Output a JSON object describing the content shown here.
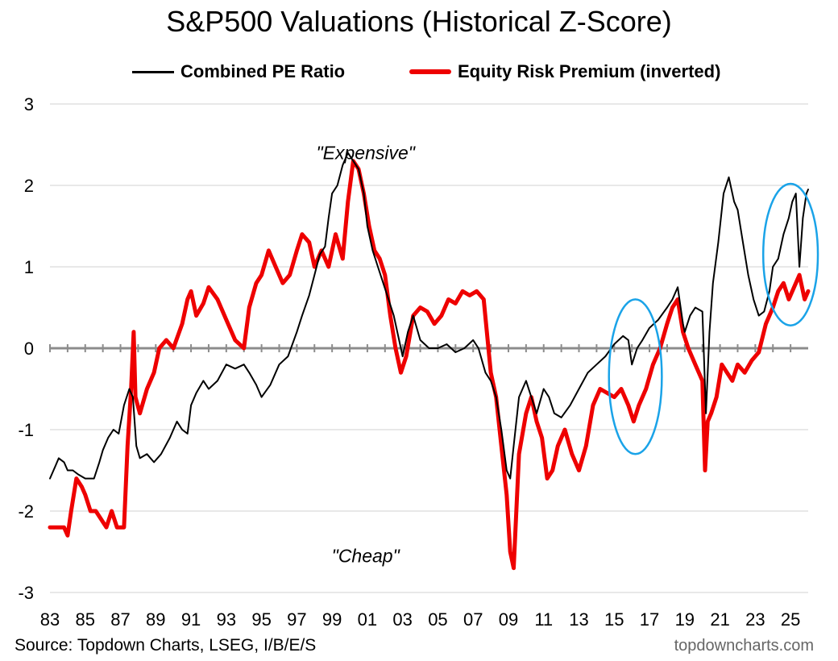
{
  "chart_data": {
    "type": "line",
    "title": "S&P500 Valuations (Historical Z-Score)",
    "xlabel": "",
    "ylabel": "",
    "ylim": [
      -3,
      3
    ],
    "xlim": [
      1983,
      2026
    ],
    "yticks": [
      3,
      2,
      1,
      0,
      -1,
      -2,
      -3
    ],
    "xtick_labels": [
      "83",
      "85",
      "87",
      "89",
      "91",
      "93",
      "95",
      "97",
      "99",
      "01",
      "03",
      "05",
      "07",
      "09",
      "11",
      "13",
      "15",
      "17",
      "19",
      "21",
      "23",
      "25"
    ],
    "grid": true,
    "legend_position": "top",
    "series": [
      {
        "name": "Combined PE Ratio",
        "color": "#000000",
        "x": [
          1983.0,
          1983.3,
          1983.5,
          1983.8,
          1984.0,
          1984.3,
          1984.6,
          1985.0,
          1985.5,
          1985.8,
          1986.0,
          1986.3,
          1986.6,
          1986.9,
          1987.2,
          1987.5,
          1987.7,
          1987.9,
          1988.1,
          1988.5,
          1988.9,
          1989.3,
          1989.8,
          1990.2,
          1990.5,
          1990.8,
          1991.0,
          1991.3,
          1991.7,
          1992.0,
          1992.5,
          1993.0,
          1993.5,
          1994.0,
          1994.3,
          1994.7,
          1995.0,
          1995.5,
          1996.0,
          1996.5,
          1997.0,
          1997.3,
          1997.7,
          1998.0,
          1998.3,
          1998.6,
          1998.8,
          1999.0,
          1999.3,
          1999.6,
          1999.9,
          2000.2,
          2000.5,
          2000.8,
          2001.0,
          2001.3,
          2001.6,
          2001.9,
          2002.2,
          2002.5,
          2002.8,
          2003.0,
          2003.3,
          2003.6,
          2004.0,
          2004.5,
          2005.0,
          2005.5,
          2006.0,
          2006.5,
          2007.0,
          2007.3,
          2007.7,
          2008.0,
          2008.3,
          2008.6,
          2008.9,
          2009.1,
          2009.3,
          2009.6,
          2010.0,
          2010.3,
          2010.6,
          2011.0,
          2011.3,
          2011.6,
          2012.0,
          2012.5,
          2013.0,
          2013.5,
          2014.0,
          2014.5,
          2015.0,
          2015.5,
          2015.8,
          2016.0,
          2016.3,
          2016.6,
          2017.0,
          2017.5,
          2018.0,
          2018.3,
          2018.6,
          2018.9,
          2019.0,
          2019.3,
          2019.6,
          2020.0,
          2020.2,
          2020.4,
          2020.6,
          2020.9,
          2021.2,
          2021.5,
          2021.8,
          2022.0,
          2022.3,
          2022.6,
          2022.9,
          2023.2,
          2023.5,
          2023.8,
          2024.0,
          2024.3,
          2024.6,
          2024.9,
          2025.1,
          2025.3,
          2025.5,
          2025.7,
          2025.9,
          2026.0
        ],
        "values": [
          -1.6,
          -1.45,
          -1.35,
          -1.4,
          -1.5,
          -1.5,
          -1.55,
          -1.6,
          -1.6,
          -1.4,
          -1.25,
          -1.1,
          -1.0,
          -1.05,
          -0.7,
          -0.5,
          -0.6,
          -1.2,
          -1.35,
          -1.3,
          -1.4,
          -1.3,
          -1.1,
          -0.9,
          -1.0,
          -1.05,
          -0.7,
          -0.55,
          -0.4,
          -0.5,
          -0.4,
          -0.2,
          -0.25,
          -0.2,
          -0.3,
          -0.45,
          -0.6,
          -0.45,
          -0.2,
          -0.1,
          0.2,
          0.4,
          0.65,
          0.9,
          1.15,
          1.25,
          1.6,
          1.9,
          2.0,
          2.25,
          2.4,
          2.3,
          2.2,
          1.9,
          1.5,
          1.2,
          1.0,
          0.8,
          0.6,
          0.4,
          0.1,
          -0.1,
          0.2,
          0.4,
          0.1,
          0.0,
          0.0,
          0.05,
          -0.05,
          0.0,
          0.1,
          0.0,
          -0.3,
          -0.4,
          -0.6,
          -1.0,
          -1.5,
          -1.6,
          -1.2,
          -0.6,
          -0.4,
          -0.6,
          -0.8,
          -0.5,
          -0.6,
          -0.8,
          -0.85,
          -0.7,
          -0.5,
          -0.3,
          -0.2,
          -0.1,
          0.05,
          0.15,
          0.1,
          -0.2,
          0.0,
          0.1,
          0.25,
          0.35,
          0.5,
          0.6,
          0.75,
          0.3,
          0.2,
          0.4,
          0.5,
          0.45,
          -0.8,
          0.2,
          0.8,
          1.3,
          1.9,
          2.1,
          1.8,
          1.7,
          1.3,
          0.9,
          0.6,
          0.4,
          0.45,
          0.7,
          1.0,
          1.1,
          1.4,
          1.6,
          1.8,
          1.9,
          1.0,
          1.6,
          1.9,
          1.95
        ],
        "stroke_width": 2
      },
      {
        "name": "Equity Risk Premium (inverted)",
        "color": "#ee0000",
        "x": [
          1983.0,
          1983.4,
          1983.8,
          1984.0,
          1984.2,
          1984.5,
          1984.8,
          1985.0,
          1985.3,
          1985.6,
          1985.9,
          1986.2,
          1986.5,
          1986.8,
          1987.0,
          1987.2,
          1987.4,
          1987.6,
          1987.75,
          1987.85,
          1988.1,
          1988.5,
          1988.9,
          1989.2,
          1989.6,
          1990.0,
          1990.5,
          1990.8,
          1991.0,
          1991.3,
          1991.7,
          1992.0,
          1992.5,
          1993.0,
          1993.5,
          1994.0,
          1994.3,
          1994.7,
          1995.0,
          1995.4,
          1995.8,
          1996.2,
          1996.6,
          1997.0,
          1997.3,
          1997.7,
          1998.0,
          1998.4,
          1998.8,
          1999.2,
          1999.6,
          1999.9,
          2000.2,
          2000.5,
          2000.8,
          2001.1,
          2001.4,
          2001.7,
          2002.0,
          2002.3,
          2002.6,
          2002.9,
          2003.2,
          2003.6,
          2004.0,
          2004.4,
          2004.8,
          2005.2,
          2005.6,
          2006.0,
          2006.4,
          2006.8,
          2007.2,
          2007.6,
          2008.0,
          2008.3,
          2008.6,
          2008.9,
          2009.1,
          2009.3,
          2009.6,
          2010.0,
          2010.3,
          2010.6,
          2010.9,
          2011.2,
          2011.5,
          2011.8,
          2012.2,
          2012.6,
          2013.0,
          2013.4,
          2013.8,
          2014.2,
          2014.6,
          2015.0,
          2015.4,
          2015.8,
          2016.1,
          2016.4,
          2016.8,
          2017.2,
          2017.6,
          2018.0,
          2018.3,
          2018.6,
          2018.9,
          2019.2,
          2019.6,
          2020.0,
          2020.15,
          2020.3,
          2020.5,
          2020.8,
          2021.1,
          2021.4,
          2021.7,
          2022.0,
          2022.4,
          2022.8,
          2023.2,
          2023.6,
          2024.0,
          2024.3,
          2024.6,
          2024.9,
          2025.2,
          2025.5,
          2025.8,
          2026.0
        ],
        "values": [
          -2.2,
          -2.2,
          -2.2,
          -2.3,
          -2.0,
          -1.6,
          -1.7,
          -1.8,
          -2.0,
          -2.0,
          -2.1,
          -2.2,
          -2.0,
          -2.2,
          -2.2,
          -2.2,
          -1.2,
          -0.5,
          0.2,
          -0.6,
          -0.8,
          -0.5,
          -0.3,
          0.0,
          0.1,
          0.0,
          0.3,
          0.6,
          0.7,
          0.4,
          0.55,
          0.75,
          0.6,
          0.35,
          0.1,
          0.0,
          0.5,
          0.8,
          0.9,
          1.2,
          1.0,
          0.8,
          0.9,
          1.2,
          1.4,
          1.3,
          1.0,
          1.2,
          1.0,
          1.4,
          1.1,
          1.8,
          2.3,
          2.2,
          1.9,
          1.5,
          1.2,
          1.1,
          0.9,
          0.4,
          0.0,
          -0.3,
          -0.1,
          0.4,
          0.5,
          0.45,
          0.3,
          0.4,
          0.6,
          0.55,
          0.7,
          0.65,
          0.7,
          0.6,
          -0.3,
          -0.6,
          -1.2,
          -1.8,
          -2.5,
          -2.7,
          -1.3,
          -0.8,
          -0.6,
          -0.9,
          -1.1,
          -1.6,
          -1.5,
          -1.2,
          -1.0,
          -1.3,
          -1.5,
          -1.2,
          -0.7,
          -0.5,
          -0.55,
          -0.6,
          -0.5,
          -0.7,
          -0.9,
          -0.7,
          -0.5,
          -0.2,
          0.0,
          0.3,
          0.5,
          0.6,
          0.2,
          0.0,
          -0.2,
          -0.4,
          -1.5,
          -0.9,
          -0.8,
          -0.6,
          -0.2,
          -0.3,
          -0.4,
          -0.2,
          -0.3,
          -0.15,
          -0.05,
          0.3,
          0.5,
          0.7,
          0.8,
          0.6,
          0.75,
          0.9,
          0.6,
          0.7
        ],
        "stroke_width": 5
      }
    ],
    "annotations": [
      {
        "text": "\"Expensive\"",
        "x": 2000.9,
        "y": 2.4
      },
      {
        "text": "\"Cheap\"",
        "x": 2000.9,
        "y": -2.55
      }
    ],
    "highlight_ellipses": [
      {
        "x": 2016.2,
        "y": -0.35,
        "rx_years": 1.5,
        "ry": 0.95,
        "color": "#1aa3e8"
      },
      {
        "x": 2025.0,
        "y": 1.15,
        "rx_years": 1.55,
        "ry": 0.87,
        "color": "#1aa3e8"
      }
    ],
    "source": "Source: Topdown Charts, LSEG, I/B/E/S",
    "credit": "topdowncharts.com"
  }
}
